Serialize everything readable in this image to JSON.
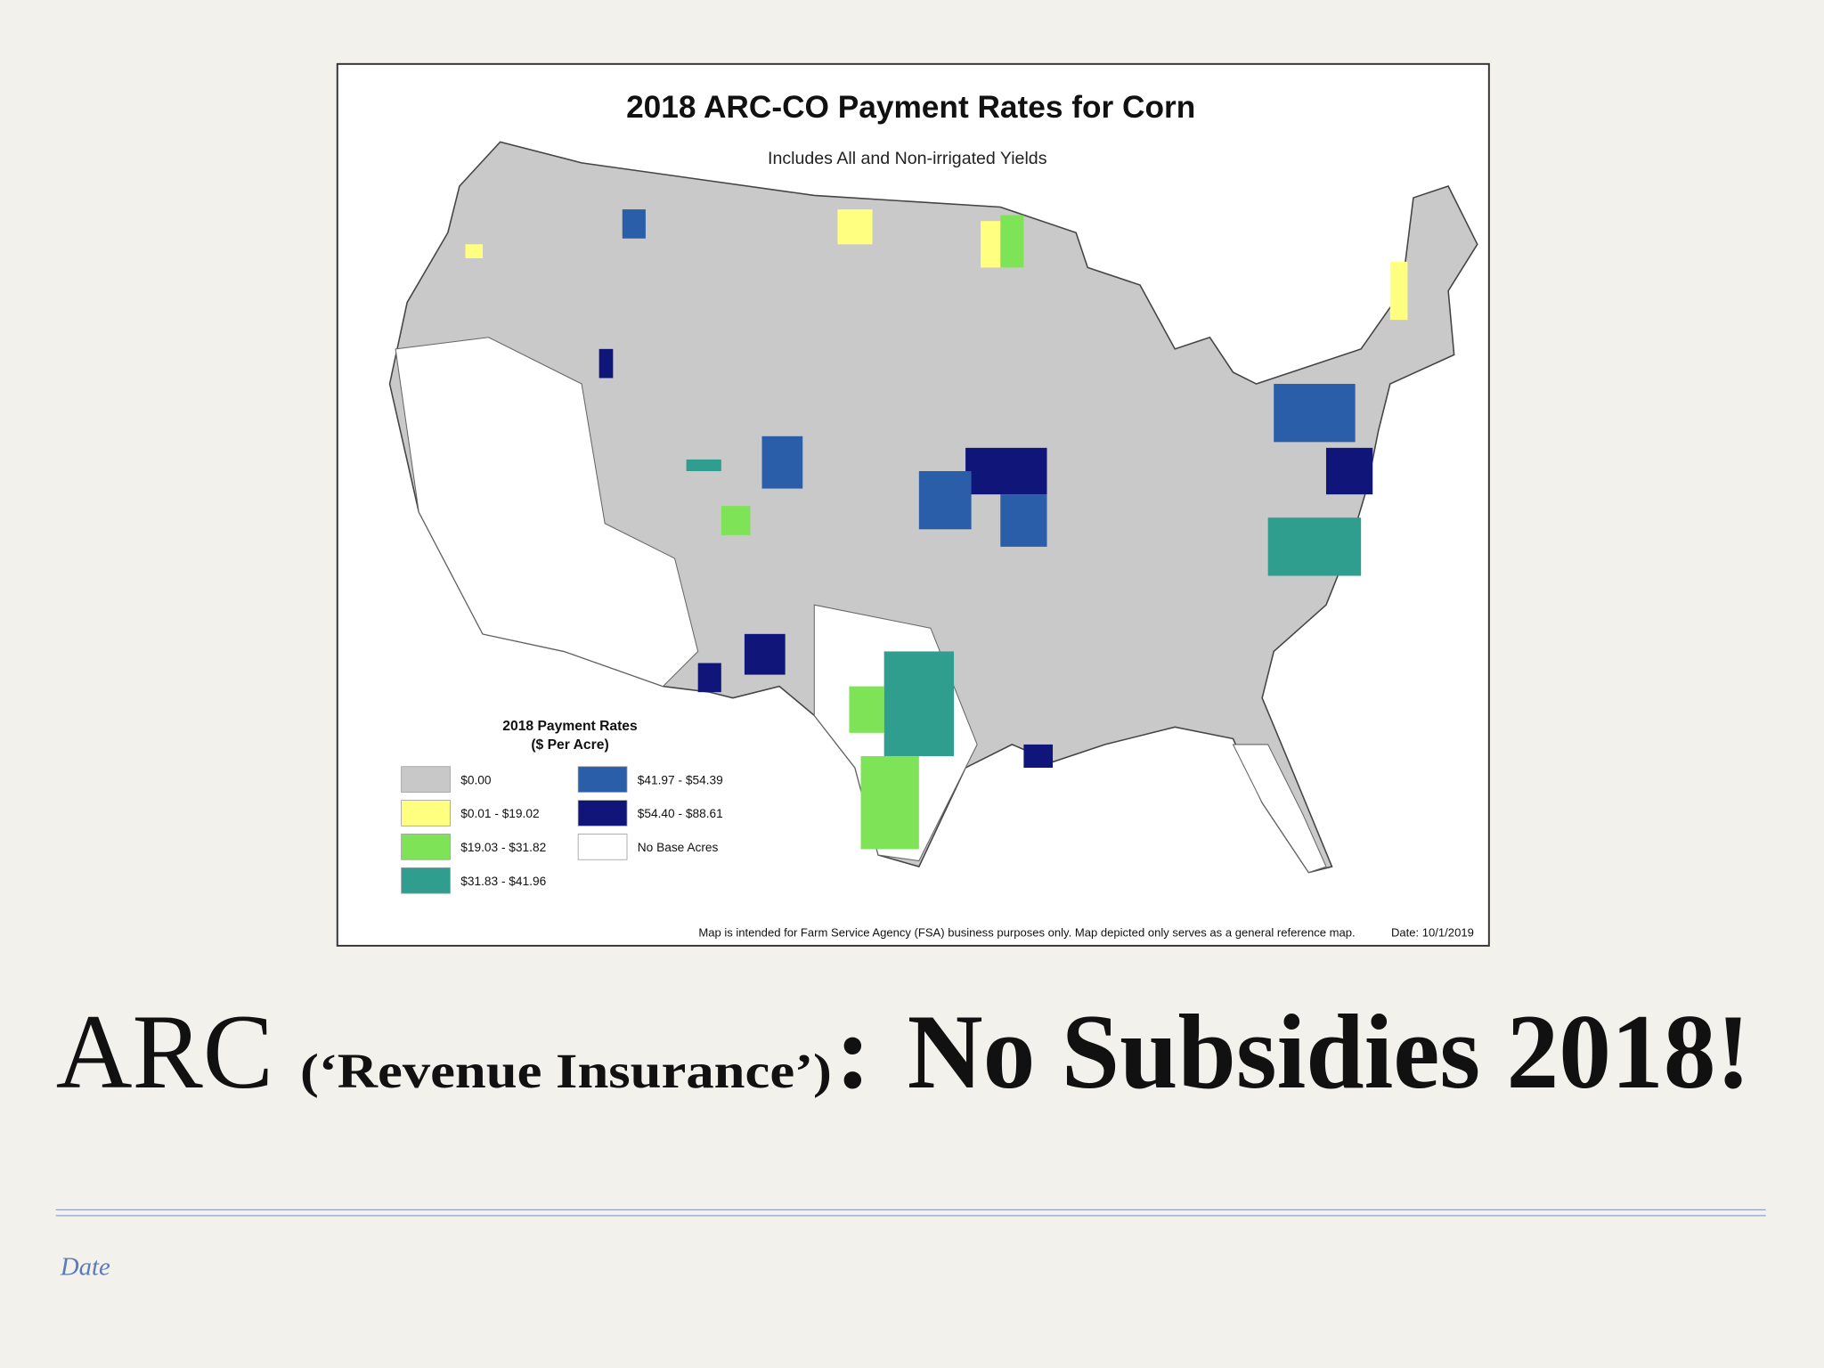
{
  "map": {
    "title": "2018 ARC-CO Payment Rates for Corn",
    "subtitle": "Includes All and Non-irrigated Yields",
    "legend": {
      "title": [
        "2018 Payment Rates",
        "($ Per Acre)"
      ],
      "items": [
        {
          "label": "$0.00",
          "color": "#c8c8c8"
        },
        {
          "label": "$0.01 - $19.02",
          "color": "#ffff80"
        },
        {
          "label": "$19.03 - $31.82",
          "color": "#7ee356"
        },
        {
          "label": "$31.83 - $41.96",
          "color": "#2f9e8e"
        },
        {
          "label": "$41.97 - $54.39",
          "color": "#2b5ea8"
        },
        {
          "label": "$54.40 - $88.61",
          "color": "#10157a"
        },
        {
          "label": "No Base Acres",
          "color": "#ffffff"
        }
      ]
    },
    "footnote": "Map is intended for Farm Service Agency (FSA) business purposes only.  Map depicted only serves as a general reference map.",
    "date": "Date: 10/1/2019"
  },
  "slide": {
    "title": {
      "main": "ARC",
      "aside": "(‘Revenue Insurance’)",
      "colon": ":",
      "tail": "No Subsidies 2018!"
    }
  },
  "footer": {
    "date": "Date"
  }
}
